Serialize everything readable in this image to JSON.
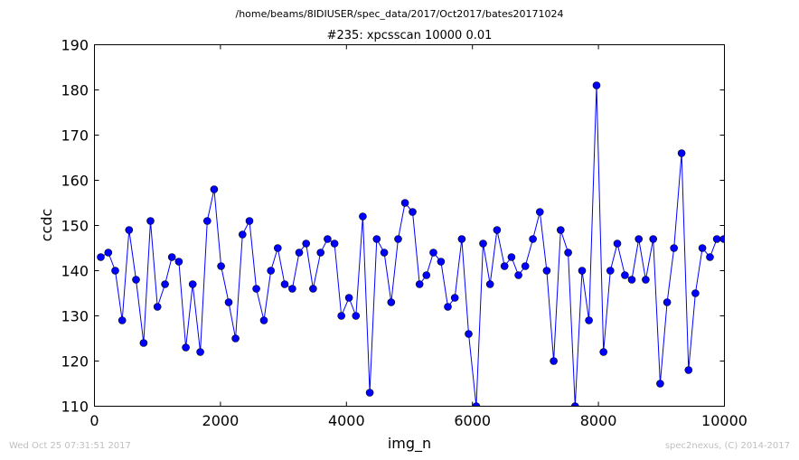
{
  "header": {
    "suptitle": "/home/beams/8IDIUSER/spec_data/2017/Oct2017/bates20171024"
  },
  "footer": {
    "timestamp": "Wed Oct 25 07:31:51 2017",
    "credit": "spec2nexus, (C) 2014-2017"
  },
  "chart_data": {
    "type": "line",
    "title": "#235: xpcsscan 10000 0.01",
    "xlabel": "img_n",
    "ylabel": "ccdc",
    "xlim": [
      0,
      10000
    ],
    "ylim": [
      110,
      190
    ],
    "xticks": [
      "0",
      "2000",
      "4000",
      "6000",
      "8000",
      "10000"
    ],
    "yticks": [
      "110",
      "120",
      "130",
      "140",
      "150",
      "160",
      "170",
      "180",
      "190"
    ],
    "grid": false,
    "markers": true,
    "series": [
      {
        "color": "#0000ff",
        "x": [
          100,
          220,
          330,
          440,
          550,
          660,
          780,
          890,
          1000,
          1120,
          1230,
          1340,
          1450,
          1560,
          1680,
          1790,
          1900,
          2010,
          2130,
          2240,
          2350,
          2460,
          2570,
          2690,
          2800,
          2910,
          3020,
          3140,
          3250,
          3360,
          3470,
          3590,
          3700,
          3810,
          3920,
          4040,
          4150,
          4260,
          4370,
          4480,
          4600,
          4710,
          4820,
          4930,
          5050,
          5160,
          5270,
          5380,
          5500,
          5610,
          5720,
          5830,
          5940,
          6060,
          6170,
          6280,
          6390,
          6510,
          6620,
          6730,
          6840,
          6960,
          7070,
          7180,
          7290,
          7400,
          7520,
          7630,
          7740,
          7850,
          7970,
          8080,
          8190,
          8300,
          8420,
          8530,
          8640,
          8750,
          8870,
          8980,
          9090,
          9200,
          9320,
          9430,
          9540,
          9650,
          9770,
          9880,
          9990
        ],
        "y": [
          143,
          144,
          140,
          129,
          149,
          138,
          124,
          151,
          132,
          137,
          143,
          142,
          123,
          137,
          122,
          151,
          158,
          141,
          133,
          125,
          148,
          151,
          136,
          129,
          140,
          145,
          137,
          136,
          144,
          146,
          136,
          144,
          147,
          146,
          130,
          134,
          130,
          152,
          113,
          147,
          144,
          133,
          147,
          155,
          153,
          137,
          139,
          144,
          142,
          132,
          134,
          147,
          126,
          110,
          146,
          137,
          149,
          141,
          143,
          139,
          141,
          147,
          153,
          140,
          120,
          149,
          144,
          110,
          140,
          129,
          181,
          122,
          140,
          146,
          139,
          138,
          147,
          138,
          147,
          115,
          133,
          145,
          166,
          118,
          135,
          145,
          143,
          147,
          147
        ]
      }
    ]
  }
}
